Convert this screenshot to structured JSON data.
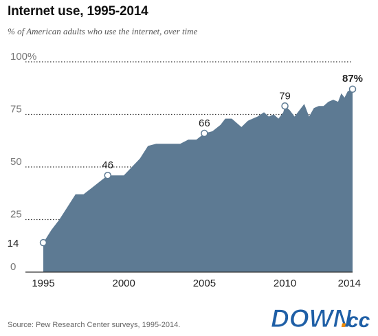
{
  "colors": {
    "area": "#5d7a93",
    "grid": "#333333",
    "point_stroke": "#5d7a93",
    "watermark_blue": "#1f5fa6",
    "watermark_orange": "#f08a00"
  },
  "chart_data": {
    "type": "area",
    "title": "Internet use, 1995-2014",
    "subtitle": "% of American adults who use the internet, over time",
    "xlabel": "",
    "ylabel": "",
    "xlim": [
      1995,
      2014
    ],
    "ylim": [
      0,
      100
    ],
    "x_ticks": [
      "1995",
      "2000",
      "2005",
      "2010",
      "2014"
    ],
    "y_ticks": [
      "0",
      "25",
      "50",
      "75",
      "100%"
    ],
    "grid": true,
    "series": [
      {
        "points": [
          [
            1995.0,
            14
          ],
          [
            1995.5,
            20
          ],
          [
            1996.0,
            25
          ],
          [
            1996.5,
            31
          ],
          [
            1997.0,
            37
          ],
          [
            1997.5,
            37
          ],
          [
            1998.0,
            40
          ],
          [
            1998.5,
            43
          ],
          [
            1999.0,
            46
          ],
          [
            2000.0,
            46
          ],
          [
            2000.5,
            50
          ],
          [
            2001.0,
            54
          ],
          [
            2001.5,
            60
          ],
          [
            2002.0,
            61
          ],
          [
            2002.5,
            61
          ],
          [
            2003.0,
            61
          ],
          [
            2003.5,
            61
          ],
          [
            2004.0,
            63
          ],
          [
            2004.5,
            63
          ],
          [
            2005.0,
            66
          ],
          [
            2005.5,
            67
          ],
          [
            2006.0,
            70
          ],
          [
            2006.3,
            73
          ],
          [
            2006.7,
            73
          ],
          [
            2007.0,
            71
          ],
          [
            2007.3,
            69
          ],
          [
            2007.7,
            72
          ],
          [
            2008.0,
            73
          ],
          [
            2008.3,
            74
          ],
          [
            2008.7,
            76
          ],
          [
            2009.0,
            74
          ],
          [
            2009.3,
            75
          ],
          [
            2009.6,
            73
          ],
          [
            2009.9,
            76
          ],
          [
            2010.0,
            79
          ],
          [
            2010.3,
            77
          ],
          [
            2010.6,
            74
          ],
          [
            2010.9,
            77
          ],
          [
            2011.2,
            80
          ],
          [
            2011.5,
            74
          ],
          [
            2011.8,
            78
          ],
          [
            2012.1,
            79
          ],
          [
            2012.4,
            79
          ],
          [
            2012.7,
            81
          ],
          [
            2013.0,
            82
          ],
          [
            2013.3,
            81
          ],
          [
            2013.5,
            85
          ],
          [
            2013.7,
            83
          ],
          [
            2013.9,
            86
          ],
          [
            2014.2,
            87
          ]
        ]
      }
    ],
    "annotations": [
      {
        "x": 1995.0,
        "y": 14,
        "label": "14"
      },
      {
        "x": 1999.0,
        "y": 46,
        "label": "46"
      },
      {
        "x": 2005.0,
        "y": 66,
        "label": "66"
      },
      {
        "x": 2010.0,
        "y": 79,
        "label": "79"
      },
      {
        "x": 2014.2,
        "y": 87,
        "label": "87%"
      }
    ],
    "source": "Source: Pew Research Center surveys, 1995-2014."
  },
  "watermark": {
    "text_main": "DOWN",
    "text_dot": ".",
    "text_suffix": "cc"
  }
}
